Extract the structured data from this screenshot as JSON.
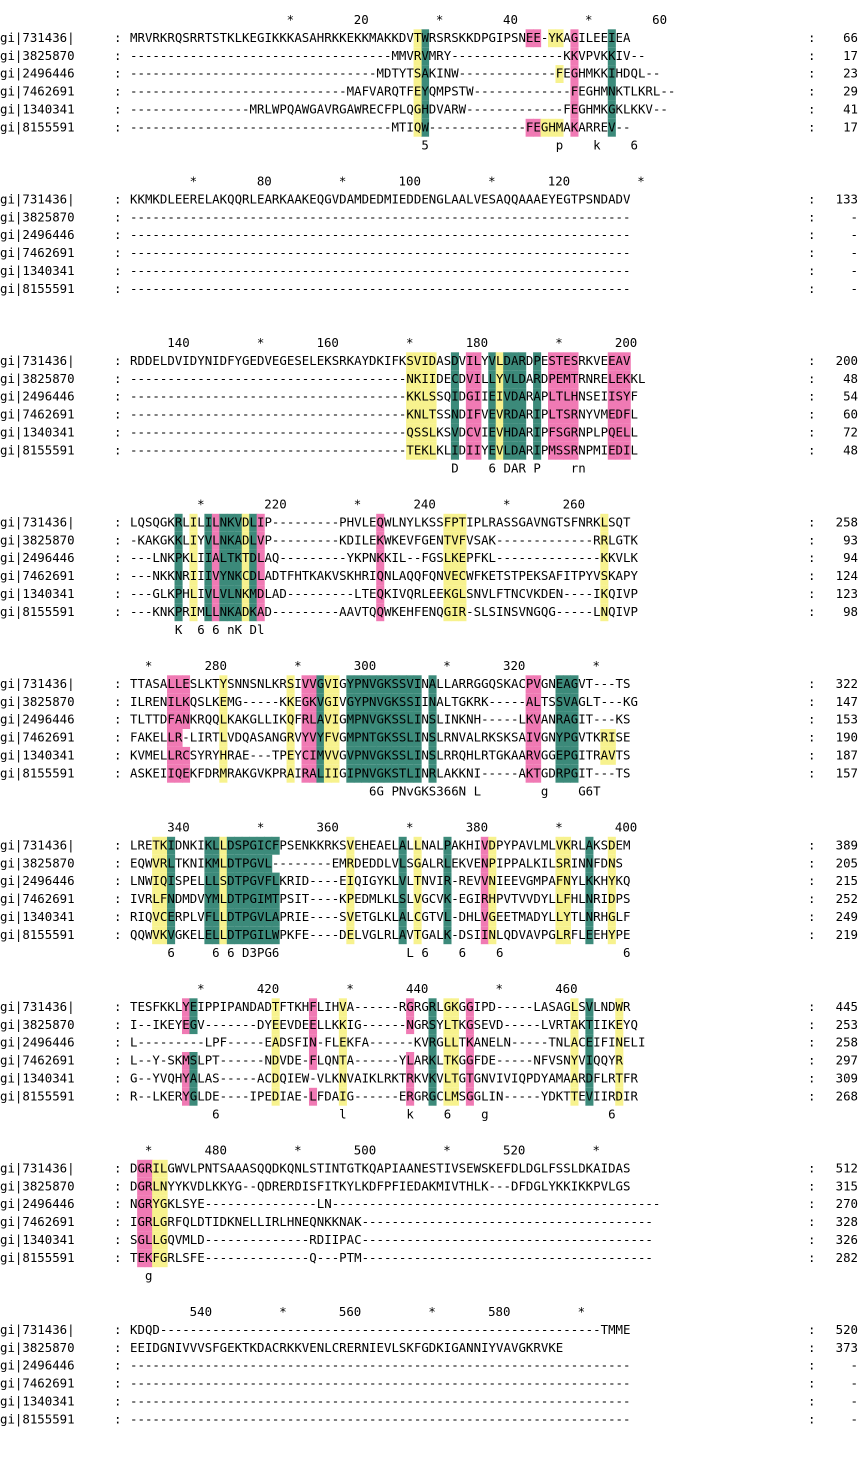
{
  "colors": {
    "teal": "#3c8a7a",
    "pink": "#f07ab4",
    "yellow": "#f7f28e",
    "bg": "#ffffff",
    "text": "#000000"
  },
  "legend": "teal = fully conserved column (letter in white), pink = highly conserved, yellow = partially conserved",
  "blocks": [
    {
      "ruler": "                     *        20         *        40         *        60     ",
      "rows": [
        {
          "id": "gi|731436|",
          "seq": "MRVRKRQSRRTSTKLKEGIKKKASAHRKKEKKMAKKDVTWRSRSKKDPGIPSNEE-YKAGILEEIEA",
          "end": "66"
        },
        {
          "id": "gi|3825870",
          "seq": "-----------------------------------MMVRVMRY---------------KKVPVKKIV--",
          "end": "17"
        },
        {
          "id": "gi|2496446",
          "seq": "---------------------------------MDTYTSAKINW-------------FEGHMKKIHDQL--",
          "end": "23"
        },
        {
          "id": "gi|7462691",
          "seq": "-----------------------------MAFVARQTFEYQMPSTW-------------FEGHMNKTLKRL--",
          "end": "29"
        },
        {
          "id": "gi|1340341",
          "seq": "----------------MRLWPQAWGAVRGAWRECFPLQGHDVARW-------------FEGHMKGKLKKV--",
          "end": "41"
        },
        {
          "id": "gi|8155591",
          "seq": "-----------------------------------MTIQW-------------FEGHMAKARREV--",
          "end": "17"
        }
      ],
      "consensus": "                                       5                 p    k    6"
    },
    {
      "ruler": "        *        80         *       100         *       120         *",
      "rows": [
        {
          "id": "gi|731436|",
          "seq": "KKMKDLEERELAKQQRLEARKAAKEQGVDAMDEDMIEDDENGLAALVESAQQAAAEYEGTPSNDADV",
          "end": "133"
        },
        {
          "id": "gi|3825870",
          "seq": "-------------------------------------------------------------------",
          "end": "-"
        },
        {
          "id": "gi|2496446",
          "seq": "-------------------------------------------------------------------",
          "end": "-"
        },
        {
          "id": "gi|7462691",
          "seq": "-------------------------------------------------------------------",
          "end": "-"
        },
        {
          "id": "gi|1340341",
          "seq": "-------------------------------------------------------------------",
          "end": "-"
        },
        {
          "id": "gi|8155591",
          "seq": "-------------------------------------------------------------------",
          "end": "-"
        }
      ],
      "consensus": ""
    },
    {
      "ruler": "     140         *       160         *       180         *       200",
      "rows": [
        {
          "id": "gi|731436|",
          "seq": "RDDELDVIDYNIDFYGEDVEGESELEKSRKAYDKIFKSVIDASDVILYVLDARDPESTESRKVEEAV",
          "end": "200"
        },
        {
          "id": "gi|3825870",
          "seq": "-------------------------------------NKIIDECDVILLYVLDARDPEMTRNRELEKKL",
          "end": "48"
        },
        {
          "id": "gi|2496446",
          "seq": "-------------------------------------KKLSSQIDGIIEIVDARAPLTLHNSEIISYF",
          "end": "54"
        },
        {
          "id": "gi|7462691",
          "seq": "-------------------------------------KNLTSSNDIFVEVRDARIPLTSRNYVMEDFL",
          "end": "60"
        },
        {
          "id": "gi|1340341",
          "seq": "-------------------------------------QSSLKSVDCVIEVHDARIPFSGRNPLPQELL",
          "end": "72"
        },
        {
          "id": "gi|8155591",
          "seq": "-------------------------------------TEKLKLIDIIYEVLDARIPMSSRNPMIEDIL",
          "end": "48"
        }
      ],
      "consensus": "                                           D    6 DAR P    rn"
    },
    {
      "ruler": "         *        220         *       240         *       260",
      "rows": [
        {
          "id": "gi|731436|",
          "seq": "LQSQGKRLILILNKVDLIP---------PHVLEQWLNYLKSSFPTIPLRASSGAVNGTSFNRKLSQT",
          "end": "258"
        },
        {
          "id": "gi|3825870",
          "seq": "-KAKGKKLIYVLNKADLVP---------KDILEKWKEVFGENTVFVSAK-------------RRLGTK",
          "end": "93"
        },
        {
          "id": "gi|2496446",
          "seq": "---LNKPKLIIALTKTDLAQ---------YKPNKKIL--FGSLKEPFKL--------------KKVLK",
          "end": "94"
        },
        {
          "id": "gi|7462691",
          "seq": "---NKKNRIIIVYNKCDLADTFHTKAKVSKHRIQNLAQQFQNVECWFKETSTPEKSAFITPYVSKAPY",
          "end": "124"
        },
        {
          "id": "gi|1340341",
          "seq": "---GLKPHLIVLVLNKMDLAD---------LTEQKIVQRLEEKGLSNVLFTNCVKDEN----IKQIVP",
          "end": "123"
        },
        {
          "id": "gi|8155591",
          "seq": "---KNKPRIMLLNKADKAD---------AAVTQQWKEHFENQGIR-SLSINSVNGQG-----LNQIVP",
          "end": "98"
        }
      ],
      "consensus": "      K  6 6 nK Dl"
    },
    {
      "ruler": "  *       280         *       300         *       320         *",
      "rows": [
        {
          "id": "gi|731436|",
          "seq": "TTASALLESLKTYSNNSNLKRSIVVGVIGYPNVGKSSVINALLARRGGQSKACPVGNEAGVT---TS",
          "end": "322"
        },
        {
          "id": "gi|3825870",
          "seq": "ILRENILKQSLKEMG-----KKEGKVGIVGYPNVGKSSIINALTGKRK-----ALTSSVAGLT---KG",
          "end": "147"
        },
        {
          "id": "gi|2496446",
          "seq": "TLTTDFANKRQQLKAKGLLIKQFRLAVIGMPNVGKSSLINSLINKNH-----LKVANRAGIT---KS",
          "end": "153"
        },
        {
          "id": "gi|7462691",
          "seq": "FAKELLR-LIRTLVDQASANGRVYVYFVGMPNTGKSSLINSLRNVALRKSKSAIVGNYPGVTKRISE",
          "end": "190"
        },
        {
          "id": "gi|1340341",
          "seq": "KVMELLRCSYRYHRAE---TPEYCIMVVGVPNVGKSSLINSLRRQHLRTGKAARVGGEPGITRAVTS",
          "end": "187"
        },
        {
          "id": "gi|8155591",
          "seq": "ASKEIIQEKFDRMRAKGVKPRAIRALIIGIPNVGKSTLINRLAKKNI-----AKTGDRPGIT---TS",
          "end": "157"
        }
      ],
      "consensus": "                                6G PNvGKS366N L        g    G6T"
    },
    {
      "ruler": "     340         *       360         *       380         *       400",
      "rows": [
        {
          "id": "gi|731436|",
          "seq": "LRETKIDNKIKLLDSPGICFPSENKKRKSVEHEAELALLNALPAKHIVDPYPAVLMLVKRLAKSDEM",
          "end": "389"
        },
        {
          "id": "gi|3825870",
          "seq": "EQWVRLTKNIKMLDTPGVL--------EMRDEDDLVLSGALRLEKVENPIPPALKILSRINNFDNS",
          "end": "205"
        },
        {
          "id": "gi|2496446",
          "seq": "LNWIQISPELLLSDTPGVFLKRID----EIQIGYKLVLTNVIR-REVVNIEEVGMPAFNYLKKHYKQ",
          "end": "215"
        },
        {
          "id": "gi|7462691",
          "seq": "IVRLFNDMDVYMLDTPGIMTPSIT----KPEDMLKLSLVGCVK-EGIRHPVTVVDYLLFHLNRIDPS",
          "end": "252"
        },
        {
          "id": "gi|1340341",
          "seq": "RIQVCERPLVFLLDTPGVLAPRIE----SVETGLKLALCGTVL-DHLVGEETMADYLLYTLNRHGLF",
          "end": "249"
        },
        {
          "id": "gi|8155591",
          "seq": "QQWVKVGKELELLDTPGILWPKFE----DELVGLRLAVTGALK-DSIINLQDVAVPGLRFLEEHYPE",
          "end": "219"
        }
      ],
      "consensus": "     6     6 6 D3PG6                 L 6    6    6                6"
    },
    {
      "ruler": "         *       420         *       440         *       460",
      "rows": [
        {
          "id": "gi|731436|",
          "seq": "TESFKKLYEIPPIPANDADTFTKHFLIHVA------RGRGRLGKGGIPD-----LASAGLSVLNDWR",
          "end": "445"
        },
        {
          "id": "gi|3825870",
          "seq": "I--IKEYEGV-------DYEEVDEELLKKIG------NGRSYLTKGSEVD-----LVRTAKTIIKEYQ",
          "end": "253"
        },
        {
          "id": "gi|2496446",
          "seq": "L---------LPF-----EADSFIN-FLEKFA------KVRGLLTKANELN-----TNLACEIFINELI",
          "end": "258"
        },
        {
          "id": "gi|7462691",
          "seq": "L--Y-SKMSLPT------NDVDE-FLQNTA------YLARKLTKGGFDE-----NFVSNYVIQQYR",
          "end": "297"
        },
        {
          "id": "gi|1340341",
          "seq": "G--YVQHYALAS-----ACDQIEW-VLKNVAIKLRKTRKVKVLTGTGNVIVIQPDYAMAARDFLRTFR",
          "end": "309"
        },
        {
          "id": "gi|8155591",
          "seq": "R--LKERYGLDE----IPEDIAE-LFDAIG------ERGRGCLMSGGLIN-----YDKTTEVIIRDIR",
          "end": "268"
        }
      ],
      "consensus": "           6                l        k    6    g                6"
    },
    {
      "ruler": "  *       480         *       500         *       520         *",
      "rows": [
        {
          "id": "gi|731436|",
          "seq": "DGRILGWVLPNTSAAASQQDKQNLSTINTGTKQAPIAANESTIVSEWSKEFDLDGLFSSLDKAIDAS",
          "end": "512"
        },
        {
          "id": "gi|3825870",
          "seq": "DGRLNYYKVDLKKYG--QDRERDISFITKYLKDFPFIEDAKMIVTHLK---DFDGLYKKIKKPVLGS",
          "end": "315"
        },
        {
          "id": "gi|2496446",
          "seq": "NGRYGKLSYE---------------LN--------------------------------------------",
          "end": "270"
        },
        {
          "id": "gi|7462691",
          "seq": "IGRLGRFQLDTIDKNELLIRLHNEQNKKNAK---------------------------------------",
          "end": "328"
        },
        {
          "id": "gi|1340341",
          "seq": "SGLLGQVMLD--------------RDIIPAC---------------------------------------",
          "end": "326"
        },
        {
          "id": "gi|8155591",
          "seq": "TEKFGRLSFE--------------Q---PTM---------------------------------------",
          "end": "282"
        }
      ],
      "consensus": "  g"
    },
    {
      "ruler": "        540         *       560         *       580         *",
      "rows": [
        {
          "id": "gi|731436|",
          "seq": "KDQD-----------------------------------------------------------TMME",
          "end": "520"
        },
        {
          "id": "gi|3825870",
          "seq": "EEIDGNIVVVSFGEKTKDACRKKVENLCRERNIEVLSKFGDKIGANNIYVAVGKRVKE",
          "end": "373"
        },
        {
          "id": "gi|2496446",
          "seq": "-------------------------------------------------------------------",
          "end": "-"
        },
        {
          "id": "gi|7462691",
          "seq": "-------------------------------------------------------------------",
          "end": "-"
        },
        {
          "id": "gi|1340341",
          "seq": "-------------------------------------------------------------------",
          "end": "-"
        },
        {
          "id": "gi|8155591",
          "seq": "-------------------------------------------------------------------",
          "end": "-"
        }
      ],
      "consensus": ""
    }
  ],
  "highlights": [
    {
      "block": 0,
      "start": 39,
      "end": 40,
      "color": "teal"
    },
    {
      "block": 0,
      "start": 38,
      "end": 39,
      "color": "yellow"
    },
    {
      "block": 0,
      "start": 53,
      "end": 55,
      "color": "pink"
    },
    {
      "block": 0,
      "start": 55,
      "end": 58,
      "color": "yellow"
    },
    {
      "block": 0,
      "start": 59,
      "end": 60,
      "color": "pink"
    },
    {
      "block": 0,
      "start": 64,
      "end": 65,
      "color": "teal"
    },
    {
      "block": 2,
      "start": 37,
      "end": 41,
      "color": "yellow"
    },
    {
      "block": 2,
      "start": 43,
      "end": 44,
      "color": "teal"
    },
    {
      "block": 2,
      "start": 45,
      "end": 47,
      "color": "pink"
    },
    {
      "block": 2,
      "start": 48,
      "end": 49,
      "color": "teal"
    },
    {
      "block": 2,
      "start": 49,
      "end": 50,
      "color": "yellow"
    },
    {
      "block": 2,
      "start": 50,
      "end": 53,
      "color": "teal"
    },
    {
      "block": 2,
      "start": 54,
      "end": 55,
      "color": "teal"
    },
    {
      "block": 2,
      "start": 56,
      "end": 57,
      "color": "pink"
    },
    {
      "block": 2,
      "start": 57,
      "end": 60,
      "color": "pink"
    },
    {
      "block": 2,
      "start": 64,
      "end": 67,
      "color": "pink"
    },
    {
      "block": 3,
      "start": 6,
      "end": 7,
      "color": "teal"
    },
    {
      "block": 3,
      "start": 8,
      "end": 9,
      "color": "yellow"
    },
    {
      "block": 3,
      "start": 10,
      "end": 11,
      "color": "teal"
    },
    {
      "block": 3,
      "start": 11,
      "end": 12,
      "color": "pink"
    },
    {
      "block": 3,
      "start": 12,
      "end": 13,
      "color": "teal"
    },
    {
      "block": 3,
      "start": 13,
      "end": 15,
      "color": "teal"
    },
    {
      "block": 3,
      "start": 15,
      "end": 16,
      "color": "yellow"
    },
    {
      "block": 3,
      "start": 16,
      "end": 17,
      "color": "teal"
    },
    {
      "block": 3,
      "start": 17,
      "end": 18,
      "color": "pink"
    },
    {
      "block": 3,
      "start": 33,
      "end": 34,
      "color": "pink"
    },
    {
      "block": 3,
      "start": 42,
      "end": 45,
      "color": "yellow"
    },
    {
      "block": 3,
      "start": 63,
      "end": 64,
      "color": "yellow"
    },
    {
      "block": 4,
      "start": 5,
      "end": 8,
      "color": "pink"
    },
    {
      "block": 4,
      "start": 12,
      "end": 13,
      "color": "yellow"
    },
    {
      "block": 4,
      "start": 21,
      "end": 22,
      "color": "yellow"
    },
    {
      "block": 4,
      "start": 23,
      "end": 25,
      "color": "pink"
    },
    {
      "block": 4,
      "start": 25,
      "end": 26,
      "color": "teal"
    },
    {
      "block": 4,
      "start": 26,
      "end": 28,
      "color": "yellow"
    },
    {
      "block": 4,
      "start": 29,
      "end": 31,
      "color": "teal"
    },
    {
      "block": 4,
      "start": 31,
      "end": 39,
      "color": "teal"
    },
    {
      "block": 4,
      "start": 40,
      "end": 41,
      "color": "teal"
    },
    {
      "block": 4,
      "start": 53,
      "end": 55,
      "color": "pink"
    },
    {
      "block": 4,
      "start": 57,
      "end": 60,
      "color": "teal"
    },
    {
      "block": 4,
      "start": 63,
      "end": 65,
      "color": "yellow"
    },
    {
      "block": 5,
      "start": 3,
      "end": 5,
      "color": "yellow"
    },
    {
      "block": 5,
      "start": 5,
      "end": 6,
      "color": "teal"
    },
    {
      "block": 5,
      "start": 10,
      "end": 12,
      "color": "teal"
    },
    {
      "block": 5,
      "start": 12,
      "end": 13,
      "color": "yellow"
    },
    {
      "block": 5,
      "start": 13,
      "end": 14,
      "color": "teal"
    },
    {
      "block": 5,
      "start": 14,
      "end": 20,
      "color": "teal"
    },
    {
      "block": 5,
      "start": 29,
      "end": 30,
      "color": "yellow"
    },
    {
      "block": 5,
      "start": 36,
      "end": 37,
      "color": "teal"
    },
    {
      "block": 5,
      "start": 38,
      "end": 39,
      "color": "yellow"
    },
    {
      "block": 5,
      "start": 42,
      "end": 43,
      "color": "teal"
    },
    {
      "block": 5,
      "start": 47,
      "end": 48,
      "color": "pink"
    },
    {
      "block": 5,
      "start": 48,
      "end": 49,
      "color": "yellow"
    },
    {
      "block": 5,
      "start": 57,
      "end": 59,
      "color": "yellow"
    },
    {
      "block": 5,
      "start": 61,
      "end": 62,
      "color": "teal"
    },
    {
      "block": 5,
      "start": 64,
      "end": 65,
      "color": "yellow"
    },
    {
      "block": 6,
      "start": 7,
      "end": 8,
      "color": "pink"
    },
    {
      "block": 6,
      "start": 8,
      "end": 9,
      "color": "teal"
    },
    {
      "block": 6,
      "start": 19,
      "end": 20,
      "color": "yellow"
    },
    {
      "block": 6,
      "start": 24,
      "end": 25,
      "color": "pink"
    },
    {
      "block": 6,
      "start": 28,
      "end": 29,
      "color": "yellow"
    },
    {
      "block": 6,
      "start": 37,
      "end": 38,
      "color": "pink"
    },
    {
      "block": 6,
      "start": 40,
      "end": 41,
      "color": "teal"
    },
    {
      "block": 6,
      "start": 42,
      "end": 44,
      "color": "yellow"
    },
    {
      "block": 6,
      "start": 45,
      "end": 46,
      "color": "pink"
    },
    {
      "block": 6,
      "start": 59,
      "end": 60,
      "color": "yellow"
    },
    {
      "block": 6,
      "start": 61,
      "end": 62,
      "color": "teal"
    },
    {
      "block": 6,
      "start": 65,
      "end": 66,
      "color": "yellow"
    },
    {
      "block": 7,
      "start": 1,
      "end": 3,
      "color": "pink"
    },
    {
      "block": 7,
      "start": 3,
      "end": 5,
      "color": "yellow"
    }
  ],
  "legend_colors": [
    "teal",
    "pink",
    "yellow"
  ]
}
